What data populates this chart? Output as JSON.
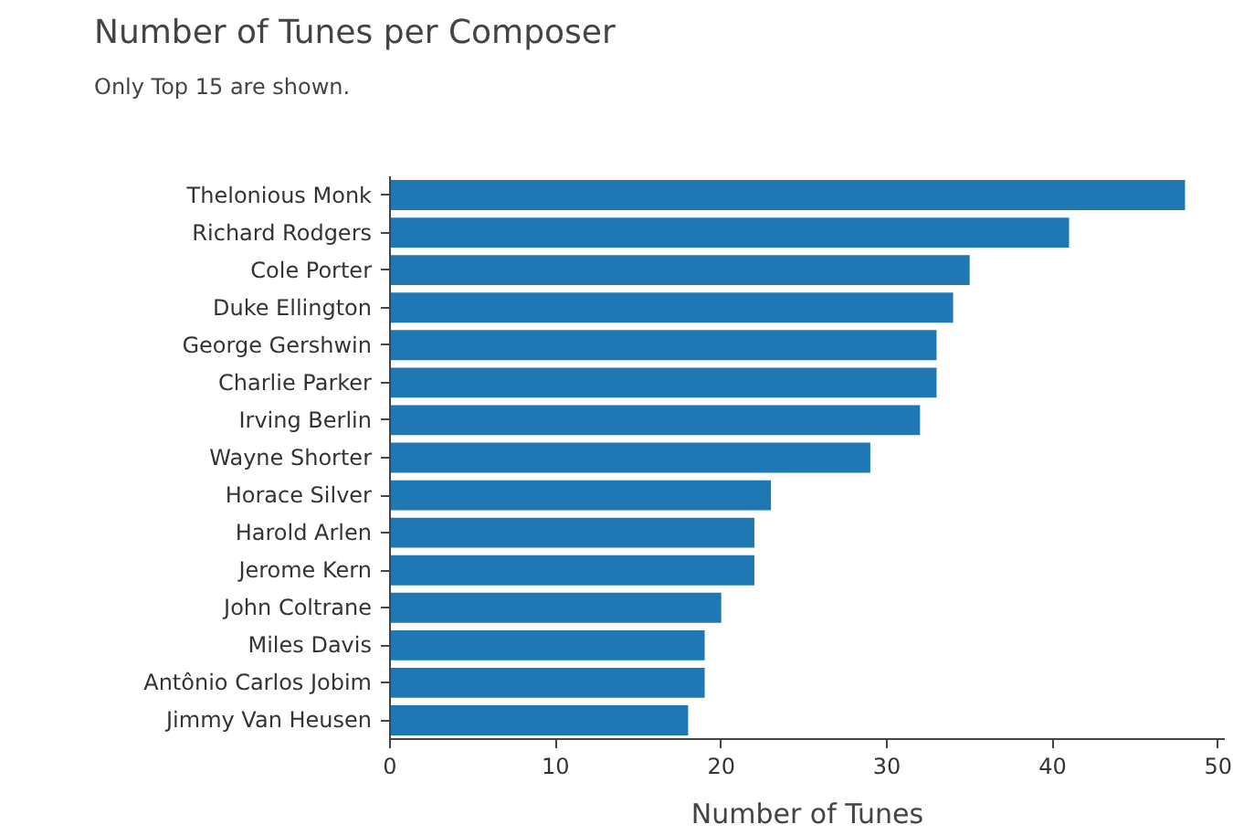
{
  "chart_data": {
    "type": "bar",
    "orientation": "horizontal",
    "title": "Number of Tunes per Composer",
    "subtitle": "Only Top 15 are shown.",
    "xlabel": "Number of Tunes",
    "categories": [
      "Thelonious Monk",
      "Richard Rodgers",
      "Cole Porter",
      "Duke Ellington",
      "George Gershwin",
      "Charlie Parker",
      "Irving Berlin",
      "Wayne Shorter",
      "Horace Silver",
      "Harold Arlen",
      "Jerome Kern",
      "John Coltrane",
      "Miles Davis",
      "Antônio Carlos Jobim",
      "Jimmy Van Heusen"
    ],
    "values": [
      48,
      41,
      35,
      34,
      33,
      33,
      32,
      29,
      23,
      22,
      22,
      20,
      19,
      19,
      18
    ],
    "color": "#1f77b4",
    "xlim": [
      0,
      50.4
    ],
    "xticks": [
      0,
      10,
      20,
      30,
      40,
      50
    ],
    "grid": false
  }
}
